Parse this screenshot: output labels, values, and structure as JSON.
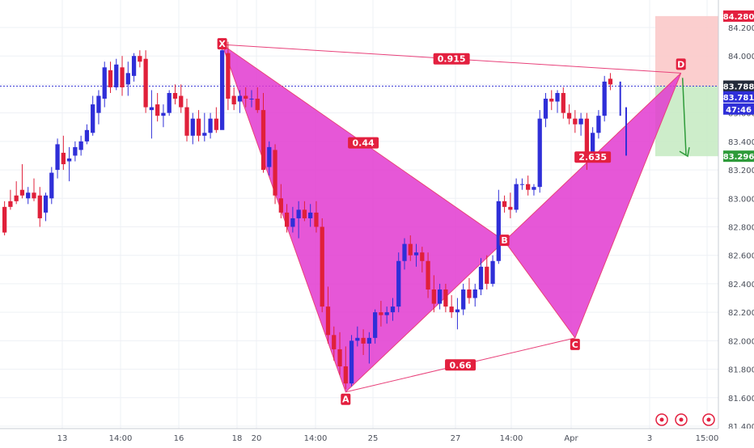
{
  "chart_data": {
    "type": "candlestick",
    "ylim": [
      81.4,
      84.32
    ],
    "y_ticks": [
      "84.200",
      "84.000",
      "83.800",
      "83.600",
      "83.400",
      "83.200",
      "83.000",
      "82.800",
      "82.600",
      "82.400",
      "82.200",
      "82.000",
      "81.800",
      "81.600",
      "81.400"
    ],
    "x_ticks": [
      "13",
      "14:00",
      "16",
      "18",
      "20",
      "14:00",
      "25",
      "27",
      "14:00",
      "Apr",
      "3",
      "15:00"
    ],
    "colors": {
      "up": "#2f2fd8",
      "down": "#e0203a",
      "pattern": "#e23ad0",
      "pattern_line": "#e8417a",
      "target": "#2e9b3a",
      "stop": "#f3a0a0",
      "target_zone": "#c8ebc4"
    },
    "candles": [
      [
        82.94,
        82.98,
        82.74,
        82.76
      ],
      [
        82.98,
        83.06,
        82.92,
        82.94
      ],
      [
        83.02,
        83.12,
        82.96,
        82.98
      ],
      [
        83.06,
        83.24,
        83.0,
        83.02
      ],
      [
        83.0,
        83.08,
        82.96,
        83.04
      ],
      [
        83.04,
        83.14,
        82.98,
        83.0
      ],
      [
        83.02,
        83.08,
        82.8,
        82.86
      ],
      [
        82.9,
        83.04,
        82.84,
        83.02
      ],
      [
        83.0,
        83.22,
        82.96,
        83.18
      ],
      [
        83.2,
        83.42,
        83.14,
        83.38
      ],
      [
        83.32,
        83.44,
        83.2,
        83.24
      ],
      [
        83.26,
        83.36,
        83.12,
        83.28
      ],
      [
        83.3,
        83.4,
        83.26,
        83.36
      ],
      [
        83.34,
        83.44,
        83.3,
        83.4
      ],
      [
        83.4,
        83.52,
        83.38,
        83.48
      ],
      [
        83.46,
        83.72,
        83.44,
        83.66
      ],
      [
        83.6,
        83.76,
        83.52,
        83.72
      ],
      [
        83.7,
        83.96,
        83.64,
        83.92
      ],
      [
        83.9,
        83.96,
        83.74,
        83.78
      ],
      [
        83.78,
        83.98,
        83.76,
        83.94
      ],
      [
        83.92,
        84.0,
        83.72,
        83.78
      ],
      [
        83.8,
        83.96,
        83.72,
        83.88
      ],
      [
        83.86,
        84.02,
        83.82,
        84.0
      ],
      [
        84.0,
        84.04,
        83.92,
        83.96
      ],
      [
        83.98,
        84.04,
        83.6,
        83.64
      ],
      [
        83.62,
        83.76,
        83.42,
        83.64
      ],
      [
        83.66,
        83.74,
        83.54,
        83.58
      ],
      [
        83.58,
        83.66,
        83.5,
        83.6
      ],
      [
        83.6,
        83.76,
        83.58,
        83.74
      ],
      [
        83.74,
        83.8,
        83.66,
        83.7
      ],
      [
        83.72,
        83.8,
        83.6,
        83.64
      ],
      [
        83.64,
        83.7,
        83.4,
        83.44
      ],
      [
        83.44,
        83.6,
        83.38,
        83.56
      ],
      [
        83.56,
        83.62,
        83.4,
        83.44
      ],
      [
        83.44,
        83.6,
        83.4,
        83.46
      ],
      [
        83.46,
        83.6,
        83.42,
        83.56
      ],
      [
        83.56,
        83.64,
        83.46,
        83.48
      ],
      [
        83.48,
        84.08,
        83.5,
        84.04
      ],
      [
        84.02,
        84.1,
        83.62,
        83.7
      ],
      [
        83.72,
        83.78,
        83.62,
        83.66
      ],
      [
        83.68,
        83.76,
        83.6,
        83.72
      ],
      [
        83.72,
        83.78,
        83.64,
        83.7
      ],
      [
        83.7,
        83.76,
        83.64,
        83.7
      ],
      [
        83.7,
        83.78,
        83.6,
        83.62
      ],
      [
        83.62,
        83.74,
        83.18,
        83.2
      ],
      [
        83.22,
        83.4,
        83.16,
        83.36
      ],
      [
        83.34,
        83.38,
        82.96,
        83.02
      ],
      [
        83.0,
        83.1,
        82.86,
        82.9
      ],
      [
        82.9,
        82.96,
        82.76,
        82.8
      ],
      [
        82.8,
        82.94,
        82.76,
        82.86
      ],
      [
        82.86,
        82.98,
        82.72,
        82.92
      ],
      [
        82.92,
        82.98,
        82.84,
        82.86
      ],
      [
        82.86,
        82.96,
        82.8,
        82.9
      ],
      [
        82.9,
        82.98,
        82.76,
        82.8
      ],
      [
        82.8,
        82.86,
        82.2,
        82.24
      ],
      [
        82.24,
        82.38,
        81.98,
        82.04
      ],
      [
        82.04,
        82.1,
        81.86,
        81.94
      ],
      [
        81.94,
        82.06,
        81.76,
        81.82
      ],
      [
        81.82,
        81.96,
        81.66,
        81.7
      ],
      [
        81.7,
        82.04,
        81.68,
        82.0
      ],
      [
        82.0,
        82.1,
        81.96,
        82.02
      ],
      [
        82.02,
        82.08,
        81.9,
        81.98
      ],
      [
        81.98,
        82.06,
        81.84,
        82.02
      ],
      [
        82.02,
        82.22,
        81.98,
        82.2
      ],
      [
        82.2,
        82.28,
        82.1,
        82.18
      ],
      [
        82.18,
        82.24,
        82.12,
        82.2
      ],
      [
        82.2,
        82.3,
        82.14,
        82.24
      ],
      [
        82.24,
        82.62,
        82.2,
        82.56
      ],
      [
        82.56,
        82.72,
        82.5,
        82.68
      ],
      [
        82.68,
        82.74,
        82.56,
        82.6
      ],
      [
        82.6,
        82.68,
        82.52,
        82.62
      ],
      [
        82.62,
        82.66,
        82.48,
        82.56
      ],
      [
        82.56,
        82.62,
        82.3,
        82.36
      ],
      [
        82.36,
        82.46,
        82.2,
        82.26
      ],
      [
        82.26,
        82.4,
        82.22,
        82.36
      ],
      [
        82.36,
        82.4,
        82.2,
        82.24
      ],
      [
        82.24,
        82.32,
        82.16,
        82.2
      ],
      [
        82.2,
        82.3,
        82.08,
        82.22
      ],
      [
        82.22,
        82.4,
        82.18,
        82.36
      ],
      [
        82.36,
        82.44,
        82.26,
        82.3
      ],
      [
        82.3,
        82.4,
        82.24,
        82.36
      ],
      [
        82.36,
        82.58,
        82.32,
        82.52
      ],
      [
        82.52,
        82.6,
        82.36,
        82.4
      ],
      [
        82.4,
        82.6,
        82.38,
        82.56
      ],
      [
        82.56,
        83.06,
        82.54,
        82.98
      ],
      [
        82.98,
        83.02,
        82.9,
        82.94
      ],
      [
        82.94,
        83.04,
        82.86,
        82.92
      ],
      [
        82.92,
        83.14,
        82.9,
        83.1
      ],
      [
        83.1,
        83.14,
        83.06,
        83.1
      ],
      [
        83.1,
        83.16,
        83.02,
        83.06
      ],
      [
        83.06,
        83.1,
        83.02,
        83.08
      ],
      [
        83.08,
        83.62,
        83.04,
        83.56
      ],
      [
        83.56,
        83.74,
        83.5,
        83.7
      ],
      [
        83.7,
        83.76,
        83.62,
        83.68
      ],
      [
        83.68,
        83.76,
        83.6,
        83.74
      ],
      [
        83.74,
        83.78,
        83.56,
        83.6
      ],
      [
        83.6,
        83.66,
        83.52,
        83.56
      ],
      [
        83.56,
        83.62,
        83.46,
        83.52
      ],
      [
        83.52,
        83.6,
        83.44,
        83.56
      ],
      [
        83.56,
        83.6,
        83.2,
        83.32
      ],
      [
        83.32,
        83.5,
        83.3,
        83.46
      ],
      [
        83.46,
        83.62,
        83.42,
        83.58
      ],
      [
        83.58,
        83.86,
        83.54,
        83.82
      ],
      [
        83.84,
        83.88,
        83.76,
        83.8
      ]
    ],
    "candle_ghost": [
      [
        83.78,
        83.82,
        83.58,
        83.6
      ],
      [
        83.6,
        83.64,
        83.3,
        83.32
      ]
    ],
    "pattern_points": {
      "X": [
        37,
        84.08
      ],
      "A": [
        58,
        81.64
      ],
      "B": [
        85,
        82.7
      ],
      "C": [
        97,
        82.02
      ],
      "D": [
        115,
        83.88
      ]
    },
    "pattern_labels": {
      "X": "X",
      "A": "A",
      "B": "B",
      "C": "C",
      "D": "D"
    },
    "ratios": {
      "XD": "0.915",
      "XB": "0.44",
      "AC": "0.66",
      "BD": "2.635"
    },
    "stop_level": 84.28,
    "entry_level": 83.788,
    "target_level": 83.296,
    "dotted_level": 83.788,
    "price_labels": {
      "stop": "84.280",
      "entry": "83.788",
      "current": "83.781",
      "countdown": "47:46",
      "target": "83.296"
    }
  }
}
